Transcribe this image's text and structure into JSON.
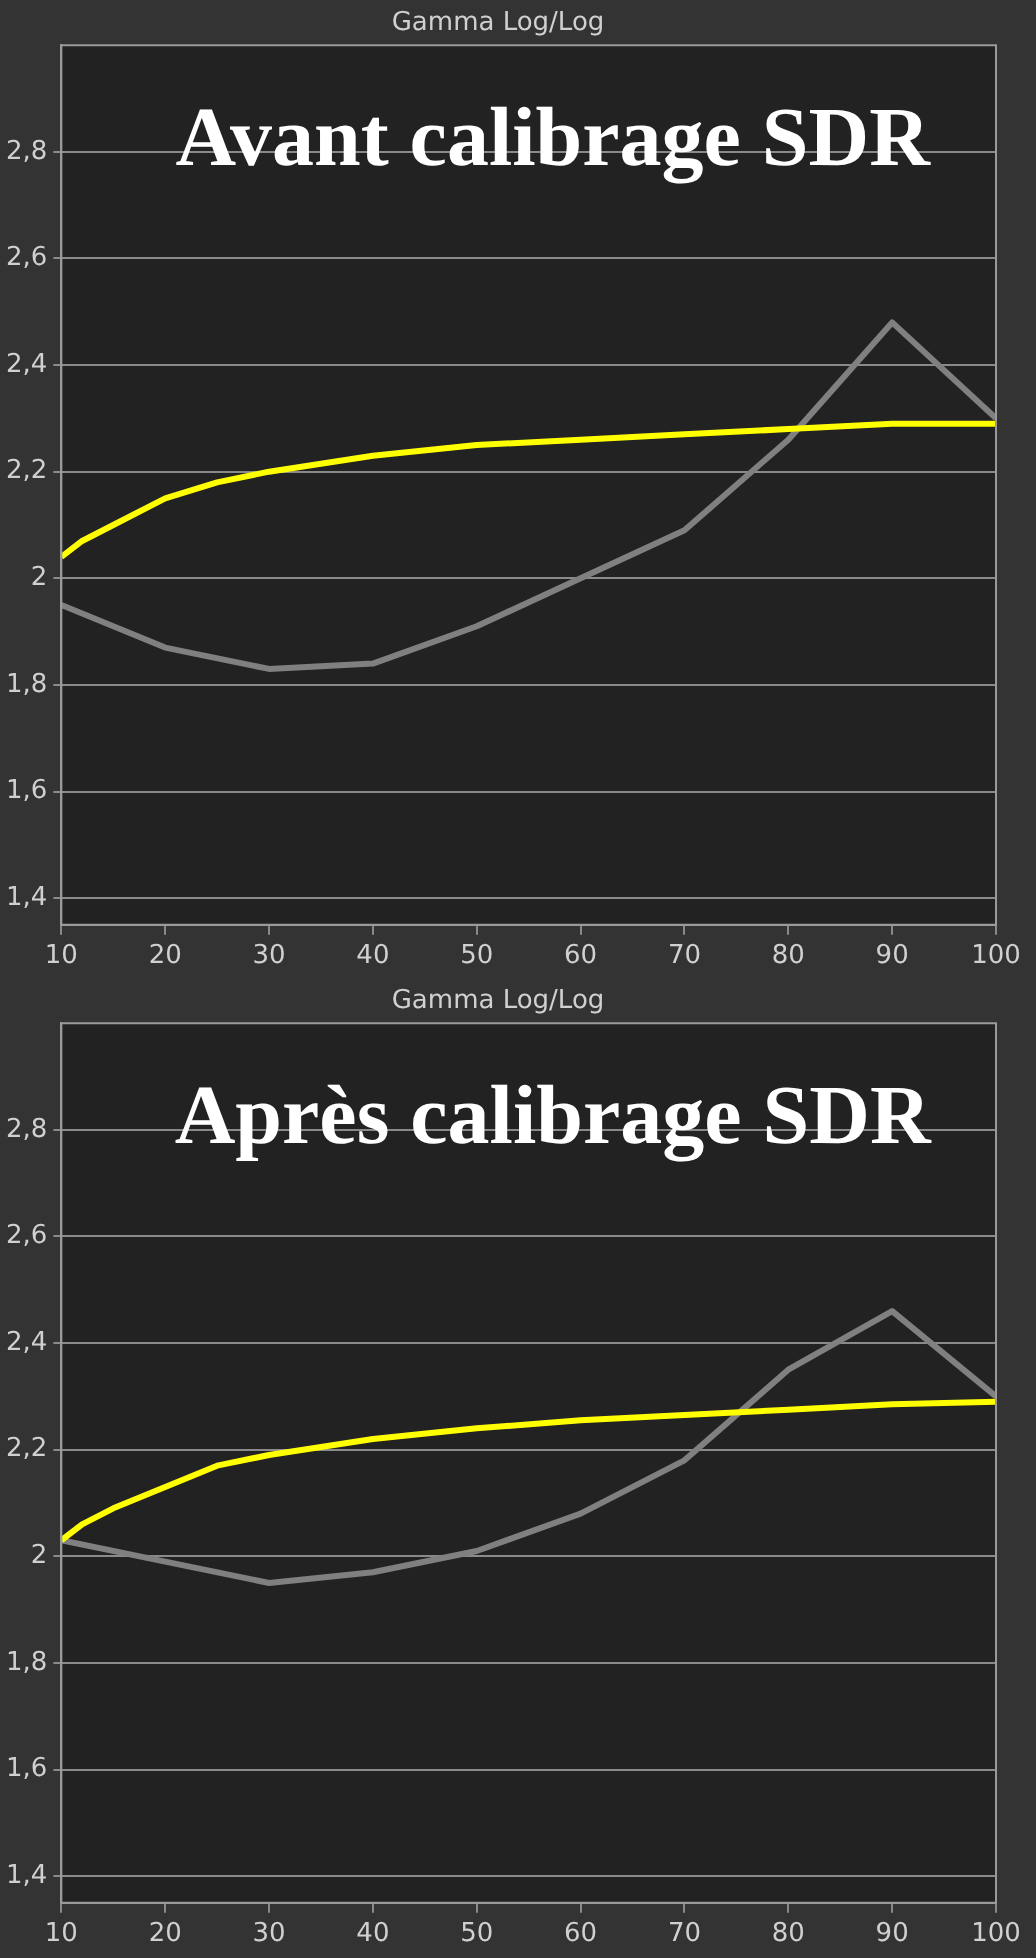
{
  "chart_data": [
    {
      "type": "line",
      "title": "Gamma Log/Log",
      "annotations": [
        "Avant calibrage SDR"
      ],
      "grid": "y",
      "legend": false,
      "marker": "none",
      "line_style": "solid",
      "xlim": [
        10,
        100
      ],
      "xticks": [
        10,
        20,
        30,
        40,
        50,
        60,
        70,
        80,
        90,
        100
      ],
      "ylim": [
        1.35,
        3.0
      ],
      "yticks": [
        {
          "value": 1.4,
          "label": "1,4"
        },
        {
          "value": 1.6,
          "label": "1,6"
        },
        {
          "value": 1.8,
          "label": "1,8"
        },
        {
          "value": 2,
          "label": "2"
        },
        {
          "value": 2.2,
          "label": "2,2"
        },
        {
          "value": 2.4,
          "label": "2,4"
        },
        {
          "value": 2.6,
          "label": "2,6"
        },
        {
          "value": 2.8,
          "label": "2,8"
        }
      ],
      "series": [
        {
          "color": "#ffff00",
          "x": [
            10,
            12,
            15,
            20,
            25,
            30,
            40,
            50,
            60,
            70,
            80,
            90,
            100
          ],
          "values": [
            2.04,
            2.07,
            2.1,
            2.15,
            2.18,
            2.2,
            2.23,
            2.25,
            2.26,
            2.27,
            2.28,
            2.29,
            2.29
          ]
        },
        {
          "color": "#808080",
          "x": [
            10,
            20,
            30,
            40,
            50,
            60,
            70,
            80,
            90,
            100
          ],
          "values": [
            1.95,
            1.87,
            1.83,
            1.84,
            1.91,
            2.0,
            2.09,
            2.26,
            2.48,
            2.3
          ]
        }
      ]
    },
    {
      "type": "line",
      "title": "Gamma Log/Log",
      "annotations": [
        "Après calibrage SDR"
      ],
      "grid": "y",
      "legend": false,
      "marker": "none",
      "line_style": "solid",
      "xlim": [
        10,
        100
      ],
      "xticks": [
        10,
        20,
        30,
        40,
        50,
        60,
        70,
        80,
        90,
        100
      ],
      "ylim": [
        1.35,
        3.0
      ],
      "yticks": [
        {
          "value": 1.4,
          "label": "1,4"
        },
        {
          "value": 1.6,
          "label": "1,6"
        },
        {
          "value": 1.8,
          "label": "1,8"
        },
        {
          "value": 2,
          "label": "2"
        },
        {
          "value": 2.2,
          "label": "2,2"
        },
        {
          "value": 2.4,
          "label": "2,4"
        },
        {
          "value": 2.6,
          "label": "2,6"
        },
        {
          "value": 2.8,
          "label": "2,8"
        }
      ],
      "series": [
        {
          "color": "#ffff00",
          "x": [
            10,
            12,
            15,
            20,
            25,
            30,
            40,
            50,
            60,
            70,
            80,
            90,
            100
          ],
          "values": [
            2.03,
            2.06,
            2.09,
            2.13,
            2.17,
            2.19,
            2.22,
            2.24,
            2.255,
            2.265,
            2.275,
            2.285,
            2.29
          ]
        },
        {
          "color": "#808080",
          "x": [
            10,
            20,
            30,
            40,
            50,
            60,
            70,
            80,
            90,
            100
          ],
          "values": [
            2.03,
            1.99,
            1.95,
            1.97,
            2.01,
            2.08,
            2.18,
            2.35,
            2.46,
            2.3
          ]
        }
      ]
    }
  ]
}
